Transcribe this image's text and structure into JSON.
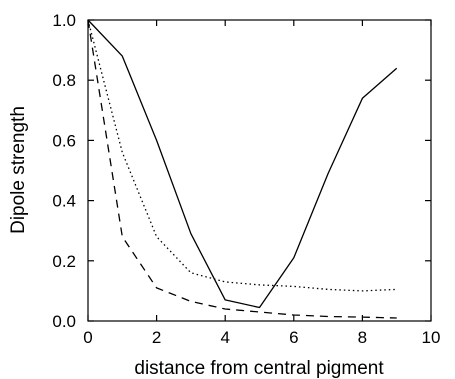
{
  "chart_data": {
    "type": "line",
    "title": "",
    "xlabel": "distance from central pigment",
    "ylabel": "Dipole strength",
    "xlim": [
      0,
      10
    ],
    "ylim": [
      0,
      1.0
    ],
    "xticks": [
      0,
      2,
      4,
      6,
      8,
      10
    ],
    "yticks": [
      0.0,
      0.2,
      0.4,
      0.6,
      0.8,
      1.0
    ],
    "xtick_labels": [
      "0",
      "2",
      "4",
      "6",
      "8",
      "10"
    ],
    "ytick_labels": [
      "0.0",
      "0.2",
      "0.4",
      "0.6",
      "0.8",
      "1.0"
    ],
    "grid": false,
    "series": [
      {
        "style": "solid",
        "x": [
          0,
          1,
          2,
          3,
          4,
          5,
          6,
          7,
          8,
          9
        ],
        "y": [
          1.0,
          0.88,
          0.6,
          0.29,
          0.07,
          0.045,
          0.21,
          0.49,
          0.74,
          0.84
        ]
      },
      {
        "style": "dotted",
        "x": [
          0,
          1,
          2,
          3,
          4,
          5,
          6,
          7,
          8,
          9
        ],
        "y": [
          1.0,
          0.56,
          0.28,
          0.16,
          0.13,
          0.12,
          0.115,
          0.105,
          0.1,
          0.105
        ]
      },
      {
        "style": "dashed",
        "x": [
          0,
          1,
          2,
          3,
          4,
          5,
          6,
          7,
          8,
          9
        ],
        "y": [
          1.0,
          0.28,
          0.11,
          0.065,
          0.04,
          0.03,
          0.02,
          0.015,
          0.013,
          0.01
        ]
      }
    ]
  },
  "colors": {
    "line": "#000000",
    "background": "#ffffff"
  }
}
